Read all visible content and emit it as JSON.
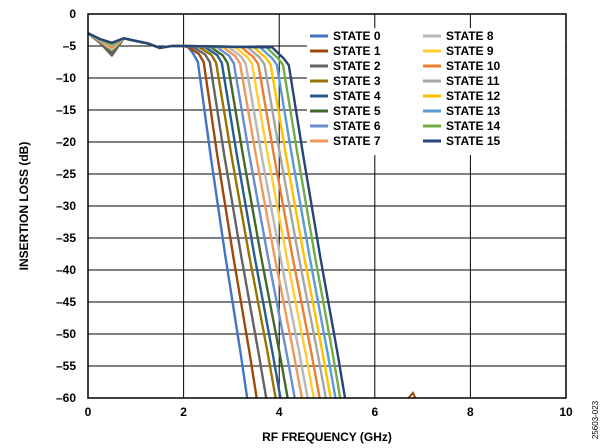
{
  "chart_data": {
    "type": "line",
    "title": "",
    "xlabel": "RF FREQUENCY (GHz)",
    "ylabel": "INSERTION LOSS (dB)",
    "xlim": [
      0,
      10
    ],
    "ylim": [
      -60,
      0
    ],
    "x_ticks": [
      "0",
      "2",
      "4",
      "6",
      "8",
      "10"
    ],
    "y_ticks": [
      "0",
      "–5",
      "–10",
      "–15",
      "–20",
      "–25",
      "–30",
      "–35",
      "–40",
      "–45",
      "–50",
      "–55",
      "–60"
    ],
    "grid": true,
    "legend_position": "top-right",
    "figure_id": "25603-023",
    "series": [
      {
        "name": "STATE 0",
        "color": "#4472C4",
        "cutoff_ghz": 2.3,
        "end_ghz": 3.35
      },
      {
        "name": "STATE 1",
        "color": "#9E480E",
        "cutoff_ghz": 2.42,
        "end_ghz": 3.55
      },
      {
        "name": "STATE 2",
        "color": "#636363",
        "cutoff_ghz": 2.55,
        "end_ghz": 3.75
      },
      {
        "name": "STATE 3",
        "color": "#997300",
        "cutoff_ghz": 2.68,
        "end_ghz": 3.95
      },
      {
        "name": "STATE 4",
        "color": "#255E91",
        "cutoff_ghz": 2.8,
        "end_ghz": 4.05
      },
      {
        "name": "STATE 5",
        "color": "#43682B",
        "cutoff_ghz": 2.92,
        "end_ghz": 4.2
      },
      {
        "name": "STATE 6",
        "color": "#698ED0",
        "cutoff_ghz": 3.05,
        "end_ghz": 4.35
      },
      {
        "name": "STATE 7",
        "color": "#F1975A",
        "cutoff_ghz": 3.18,
        "end_ghz": 4.5
      },
      {
        "name": "STATE 8",
        "color": "#B7B7B7",
        "cutoff_ghz": 3.3,
        "end_ghz": 4.62
      },
      {
        "name": "STATE 9",
        "color": "#FFCD33",
        "cutoff_ghz": 3.43,
        "end_ghz": 4.75
      },
      {
        "name": "STATE 10",
        "color": "#ED7D31",
        "cutoff_ghz": 3.56,
        "end_ghz": 4.87
      },
      {
        "name": "STATE 11",
        "color": "#A5A5A5",
        "cutoff_ghz": 3.69,
        "end_ghz": 5.0
      },
      {
        "name": "STATE 12",
        "color": "#FFC000",
        "cutoff_ghz": 3.82,
        "end_ghz": 5.1
      },
      {
        "name": "STATE 13",
        "color": "#5B9BD5",
        "cutoff_ghz": 3.95,
        "end_ghz": 5.2
      },
      {
        "name": "STATE 14",
        "color": "#70AD47",
        "cutoff_ghz": 4.08,
        "end_ghz": 5.3
      },
      {
        "name": "STATE 15",
        "color": "#264478",
        "cutoff_ghz": 4.2,
        "end_ghz": 5.4
      }
    ],
    "passband": {
      "x": [
        0.0,
        0.25,
        0.5,
        0.75,
        1.0,
        1.25,
        1.5,
        1.75,
        2.0
      ],
      "y": [
        -3.0,
        -4.5,
        -6.5,
        -3.8,
        -4.2,
        -4.6,
        -5.3,
        -5.0,
        -5.0
      ]
    },
    "stopband_spur": {
      "series": "STATE 1",
      "x": [
        6.7,
        6.75,
        6.8,
        6.85
      ],
      "y": [
        -60.0,
        -59.6,
        -59.2,
        -60.0
      ]
    }
  }
}
